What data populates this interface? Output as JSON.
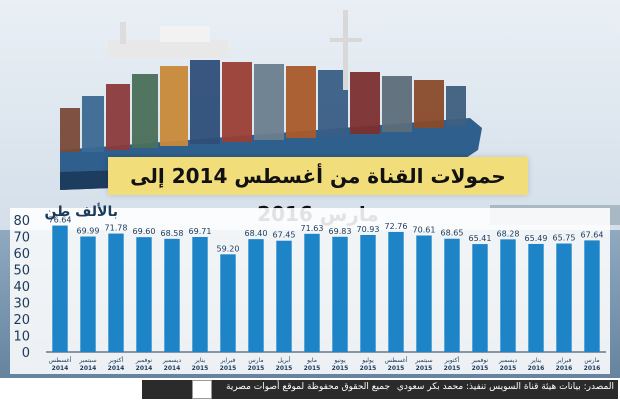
{
  "title": "حمولات القناة من أغسطس 2014 إلى مارس 2016",
  "footer": {
    "source": "المصدر: بيانات هيئة قناة السويس    تنفيذ: محمد بكر سعودي",
    "rights": "جميع الحقوق محفوظة لموقع أصوات مصرية"
  },
  "colors": {
    "bar": "#1d84c8",
    "title_bg": "#f1dd7a",
    "footer_bg": "#2b2b2b"
  },
  "chart_data": {
    "type": "bar",
    "ylabel": "بالألف طن",
    "ylim": [
      0,
      80
    ],
    "yticks": [
      0,
      10,
      20,
      30,
      40,
      50,
      60,
      70,
      80
    ],
    "grid": false,
    "categories": [
      {
        "month": "أغسطس",
        "year": "2014"
      },
      {
        "month": "سبتمبر",
        "year": "2014"
      },
      {
        "month": "أكتوبر",
        "year": "2014"
      },
      {
        "month": "نوفمبر",
        "year": "2014"
      },
      {
        "month": "ديسمبر",
        "year": "2014"
      },
      {
        "month": "يناير",
        "year": "2015"
      },
      {
        "month": "فبراير",
        "year": "2015"
      },
      {
        "month": "مارس",
        "year": "2015"
      },
      {
        "month": "أبريل",
        "year": "2015"
      },
      {
        "month": "مايو",
        "year": "2015"
      },
      {
        "month": "يونيو",
        "year": "2015"
      },
      {
        "month": "يوليو",
        "year": "2015"
      },
      {
        "month": "أغسطس",
        "year": "2015"
      },
      {
        "month": "سبتمبر",
        "year": "2015"
      },
      {
        "month": "أكتوبر",
        "year": "2015"
      },
      {
        "month": "نوفمبر",
        "year": "2015"
      },
      {
        "month": "ديسمبر",
        "year": "2015"
      },
      {
        "month": "يناير",
        "year": "2016"
      },
      {
        "month": "فبراير",
        "year": "2016"
      },
      {
        "month": "مارس",
        "year": "2016"
      }
    ],
    "values": [
      76.64,
      69.99,
      71.78,
      69.6,
      68.58,
      69.71,
      59.2,
      68.4,
      67.45,
      71.63,
      69.83,
      70.93,
      72.76,
      70.61,
      68.65,
      65.41,
      68.28,
      65.49,
      65.75,
      67.64
    ],
    "value_labels": [
      "76.64",
      "69.99",
      "71.78",
      "69.60",
      "68.58",
      "69.71",
      "59.20",
      "68.40",
      "67.45",
      "71.63",
      "69.83",
      "70.93",
      "72.76",
      "70.61",
      "68.65",
      "65.41",
      "68.28",
      "65.49",
      "65.75",
      "67.64"
    ]
  }
}
